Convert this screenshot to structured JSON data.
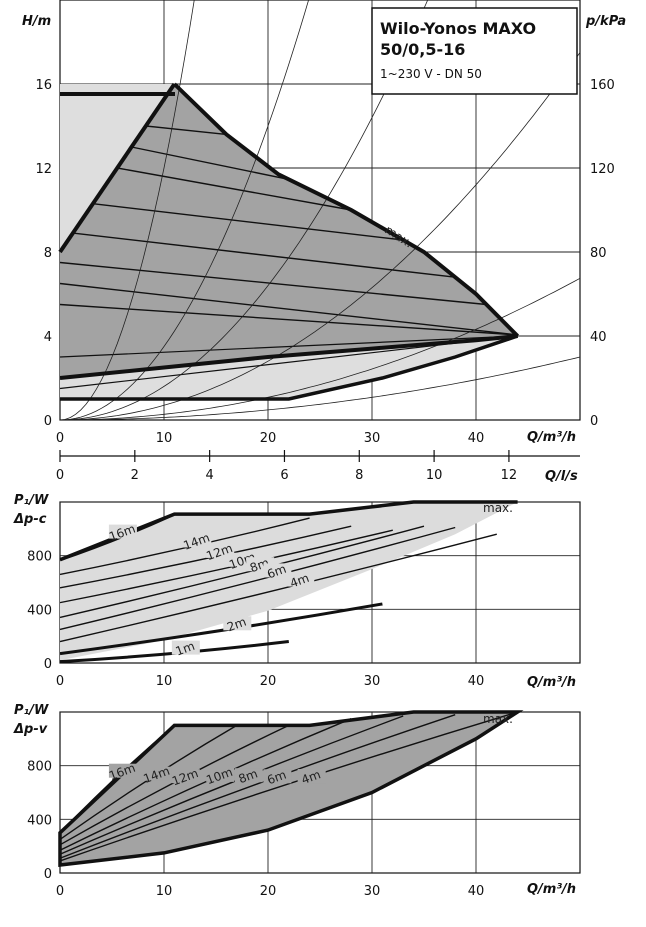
{
  "chart_data": [
    {
      "type": "line",
      "title": "Wilo-Yonos MAXO",
      "subtitle": "50/0,5-16",
      "spec": "1~230 V - DN 50",
      "xlabel": "Q/m³/h",
      "ylabel": "H/m",
      "y2label": "p/kPa",
      "xlim": [
        0,
        50
      ],
      "ylim": [
        0,
        20
      ],
      "y2lim": [
        0,
        200
      ],
      "xticks": [
        0,
        10,
        20,
        30,
        40
      ],
      "yticks": [
        0,
        4,
        8,
        12,
        16
      ],
      "y2ticks": [
        0,
        40,
        80,
        120,
        160
      ],
      "grid": true,
      "region_max": [
        [
          0,
          16
        ],
        [
          11,
          16
        ],
        [
          16,
          13.6
        ],
        [
          21,
          11.7
        ],
        [
          28,
          10
        ],
        [
          35,
          8
        ],
        [
          40,
          6
        ],
        [
          44,
          4
        ]
      ],
      "region_min": [
        [
          0,
          2
        ],
        [
          10,
          2.5
        ],
        [
          20,
          3
        ],
        [
          30,
          3.4
        ],
        [
          40,
          3.8
        ],
        [
          44,
          4
        ]
      ],
      "region_left": [
        [
          0,
          8
        ],
        [
          11,
          16
        ]
      ],
      "region_bottom": [
        [
          0,
          1
        ],
        [
          22,
          1
        ],
        [
          31,
          2
        ],
        [
          38,
          3
        ],
        [
          44,
          4
        ]
      ],
      "annotations": [
        "max."
      ]
    },
    {
      "type": "line",
      "xlabel": "Q/l/s",
      "xlim": [
        0,
        13.9
      ],
      "xticks": [
        0,
        2,
        4,
        6,
        8,
        10,
        12
      ]
    },
    {
      "type": "line",
      "ylabel": "P₁/W",
      "mode_label": "Δp-c",
      "xlabel": "Q/m³/h",
      "xlim": [
        0,
        50
      ],
      "ylim": [
        0,
        1200
      ],
      "xticks": [
        0,
        10,
        20,
        30,
        40
      ],
      "yticks": [
        0,
        400,
        800
      ],
      "annotations": [
        "max."
      ],
      "series": [
        {
          "name": "16m",
          "x": [
            0,
            11
          ],
          "y": [
            770,
            1110
          ]
        },
        {
          "name": "14m",
          "x": [
            0,
            24
          ],
          "y": [
            660,
            1080
          ]
        },
        {
          "name": "12m",
          "x": [
            0,
            28
          ],
          "y": [
            560,
            1020
          ]
        },
        {
          "name": "10m",
          "x": [
            0,
            32
          ],
          "y": [
            450,
            990
          ]
        },
        {
          "name": "8m",
          "x": [
            0,
            35
          ],
          "y": [
            340,
            1020
          ]
        },
        {
          "name": "6m",
          "x": [
            0,
            38
          ],
          "y": [
            250,
            1010
          ]
        },
        {
          "name": "4m",
          "x": [
            0,
            42
          ],
          "y": [
            160,
            960
          ]
        },
        {
          "name": "2m",
          "x": [
            0,
            31
          ],
          "y": [
            70,
            440
          ]
        },
        {
          "name": "1m",
          "x": [
            0,
            22
          ],
          "y": [
            10,
            160
          ]
        }
      ],
      "envelope": [
        [
          0,
          770
        ],
        [
          11,
          1110
        ],
        [
          24,
          1110
        ],
        [
          34,
          1200
        ],
        [
          44,
          1200
        ],
        [
          38,
          960
        ],
        [
          30,
          700
        ],
        [
          20,
          390
        ],
        [
          10,
          170
        ],
        [
          0,
          20
        ]
      ]
    },
    {
      "type": "line",
      "ylabel": "P₁/W",
      "mode_label": "Δp-v",
      "xlabel": "Q/m³/h",
      "xlim": [
        0,
        50
      ],
      "ylim": [
        0,
        1200
      ],
      "xticks": [
        0,
        10,
        20,
        30,
        40
      ],
      "yticks": [
        0,
        400,
        800
      ],
      "annotations": [
        "max."
      ],
      "series": [
        {
          "name": "16m",
          "x": [
            0,
            11
          ],
          "y": [
            300,
            1100
          ]
        },
        {
          "name": "14m",
          "x": [
            0,
            17
          ],
          "y": [
            250,
            1100
          ]
        },
        {
          "name": "12m",
          "x": [
            0,
            22
          ],
          "y": [
            210,
            1100
          ]
        },
        {
          "name": "10m",
          "x": [
            0,
            28
          ],
          "y": [
            170,
            1150
          ]
        },
        {
          "name": "8m",
          "x": [
            0,
            33
          ],
          "y": [
            140,
            1170
          ]
        },
        {
          "name": "6m",
          "x": [
            0,
            38
          ],
          "y": [
            110,
            1180
          ]
        },
        {
          "name": "4m",
          "x": [
            0,
            44
          ],
          "y": [
            90,
            1200
          ]
        }
      ],
      "envelope": [
        [
          0,
          300
        ],
        [
          11,
          1100
        ],
        [
          24,
          1100
        ],
        [
          34,
          1200
        ],
        [
          44,
          1200
        ],
        [
          40,
          1000
        ],
        [
          30,
          600
        ],
        [
          20,
          320
        ],
        [
          10,
          150
        ],
        [
          0,
          60
        ]
      ]
    }
  ]
}
